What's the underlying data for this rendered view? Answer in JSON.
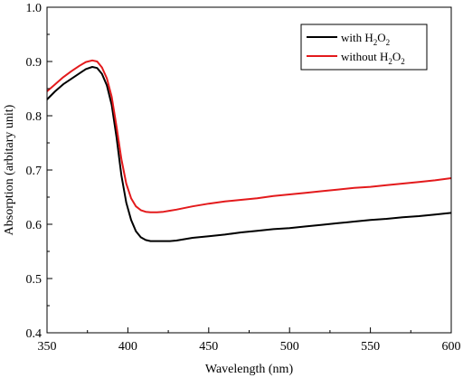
{
  "chart_data": {
    "type": "line",
    "title": "",
    "xlabel": "Wavelength (nm)",
    "ylabel": "Absorption (arbitary unit)",
    "xlim": [
      350,
      600
    ],
    "ylim": [
      0.4,
      1.0
    ],
    "xticks": [
      350,
      400,
      450,
      500,
      550,
      600
    ],
    "yticks": [
      0.4,
      0.5,
      0.6,
      0.7,
      0.8,
      0.9,
      1.0
    ],
    "grid": false,
    "legend_position": "top-right",
    "series": [
      {
        "name": "with H2O2",
        "legend_parts": [
          "with H",
          "2",
          "O",
          "2"
        ],
        "color": "#000000",
        "x": [
          350,
          355,
          360,
          365,
          370,
          374,
          378,
          381,
          384,
          387,
          390,
          393,
          396,
          399,
          402,
          405,
          408,
          411,
          414,
          418,
          422,
          426,
          430,
          440,
          450,
          460,
          470,
          480,
          490,
          500,
          510,
          520,
          530,
          540,
          550,
          560,
          570,
          580,
          590,
          600
        ],
        "y": [
          0.83,
          0.845,
          0.858,
          0.868,
          0.878,
          0.886,
          0.89,
          0.888,
          0.877,
          0.856,
          0.82,
          0.76,
          0.69,
          0.64,
          0.608,
          0.587,
          0.576,
          0.571,
          0.569,
          0.569,
          0.569,
          0.569,
          0.57,
          0.575,
          0.578,
          0.581,
          0.585,
          0.588,
          0.591,
          0.593,
          0.596,
          0.599,
          0.602,
          0.605,
          0.608,
          0.61,
          0.613,
          0.615,
          0.618,
          0.621
        ]
      },
      {
        "name": "without H2O2",
        "legend_parts": [
          "without H",
          "2",
          "O",
          "2"
        ],
        "color": "#e31a1c",
        "x": [
          350,
          355,
          360,
          365,
          370,
          374,
          378,
          381,
          384,
          387,
          390,
          393,
          396,
          399,
          402,
          405,
          408,
          411,
          414,
          418,
          422,
          426,
          430,
          440,
          450,
          460,
          470,
          480,
          490,
          500,
          510,
          520,
          530,
          540,
          550,
          560,
          570,
          580,
          590,
          600
        ],
        "y": [
          0.845,
          0.858,
          0.871,
          0.882,
          0.892,
          0.899,
          0.902,
          0.9,
          0.889,
          0.869,
          0.835,
          0.78,
          0.72,
          0.675,
          0.648,
          0.633,
          0.626,
          0.623,
          0.622,
          0.622,
          0.623,
          0.625,
          0.627,
          0.633,
          0.638,
          0.642,
          0.645,
          0.648,
          0.652,
          0.655,
          0.658,
          0.661,
          0.664,
          0.667,
          0.669,
          0.672,
          0.675,
          0.678,
          0.681,
          0.685
        ]
      }
    ]
  }
}
